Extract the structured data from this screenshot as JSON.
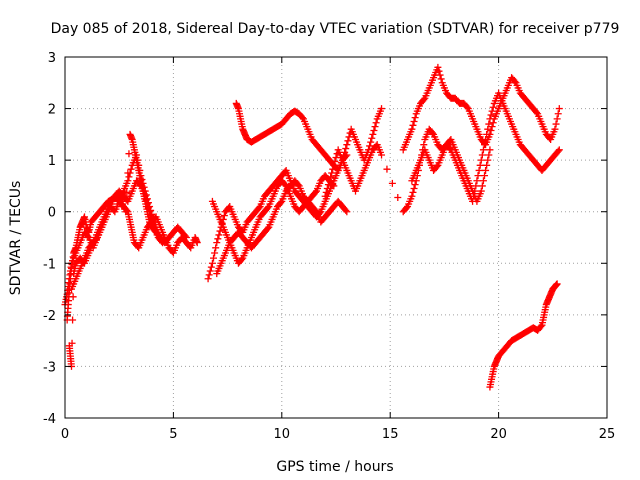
{
  "chart_data": {
    "type": "scatter",
    "title": "Day 085 of 2018, Sidereal Day-to-day VTEC variation (SDTVAR) for receiver p779",
    "xlabel": "GPS time / hours",
    "ylabel": "SDTVAR / TECUs",
    "xlim": [
      0,
      25
    ],
    "ylim": [
      -4,
      3
    ],
    "xticks": [
      0,
      5,
      10,
      15,
      20,
      25
    ],
    "yticks": [
      -4,
      -3,
      -2,
      -1,
      0,
      1,
      2,
      3
    ],
    "grid": true,
    "marker": "+",
    "series": [
      {
        "name": "s1",
        "color": "#ff0000",
        "x": [
          0.1,
          0.15,
          0.2,
          0.3,
          0.4,
          0.5,
          0.6,
          0.7,
          0.8,
          0.9,
          1.0,
          1.1,
          1.2,
          1.4,
          1.6,
          1.8,
          2.0,
          2.2,
          2.4,
          2.6,
          2.8,
          3.0,
          3.1,
          3.2,
          3.3,
          3.4,
          3.5,
          3.6,
          3.7,
          3.8,
          3.9,
          4.0,
          4.2,
          4.4,
          4.6,
          4.8,
          5.0,
          5.2,
          5.4,
          5.6
        ],
        "y": [
          -2.1,
          -1.8,
          -1.5,
          -1.1,
          -0.8,
          -0.7,
          -0.5,
          -0.3,
          -0.2,
          -0.1,
          -0.3,
          -0.4,
          -0.2,
          -0.1,
          0.0,
          0.1,
          0.2,
          0.25,
          0.3,
          0.2,
          0.0,
          1.5,
          1.4,
          1.2,
          1.0,
          0.8,
          0.6,
          0.4,
          0.2,
          0.0,
          -0.2,
          -0.3,
          -0.4,
          -0.5,
          -0.6,
          -0.5,
          -0.4,
          -0.3,
          -0.4,
          -0.5
        ]
      },
      {
        "name": "s2",
        "color": "#ff0000",
        "x": [
          0.2,
          0.25,
          0.3,
          0.4,
          0.5,
          0.7,
          0.9,
          1.1,
          1.3,
          1.5,
          1.7,
          1.9,
          2.1,
          2.3,
          2.5,
          2.7,
          2.9,
          3.0,
          3.1,
          3.2,
          3.4,
          3.6,
          3.8,
          4.0,
          4.2,
          4.4,
          4.6,
          4.8,
          5.0,
          5.2,
          5.4,
          5.6,
          5.8,
          6.0,
          6.1
        ],
        "y": [
          -2.6,
          -2.8,
          -3.0,
          -1.2,
          -1.0,
          -0.9,
          -1.0,
          -0.8,
          -0.6,
          -0.4,
          -0.2,
          0.0,
          0.2,
          0.3,
          0.2,
          0.1,
          0.0,
          -0.2,
          -0.4,
          -0.6,
          -0.7,
          -0.5,
          -0.3,
          -0.2,
          -0.1,
          -0.3,
          -0.5,
          -0.7,
          -0.8,
          -0.6,
          -0.5,
          -0.6,
          -0.7,
          -0.5,
          -0.6
        ]
      },
      {
        "name": "s3",
        "color": "#ff0000",
        "x": [
          0.3,
          0.5,
          0.7,
          0.9,
          1.1,
          1.3,
          1.5,
          1.7,
          1.9,
          2.1,
          2.3,
          2.5,
          2.7,
          2.9,
          3.1,
          3.3,
          3.5,
          3.7,
          3.9,
          4.1,
          4.3,
          4.5
        ],
        "y": [
          -1.5,
          -1.3,
          -1.1,
          -0.9,
          -0.7,
          -0.6,
          -0.5,
          -0.3,
          -0.1,
          0.1,
          0.3,
          0.4,
          0.3,
          0.2,
          0.4,
          0.6,
          0.5,
          0.3,
          0.0,
          -0.3,
          -0.5,
          -0.6
        ]
      },
      {
        "name": "s4",
        "color": "#ff0000",
        "x": [
          6.6,
          6.8,
          7.0,
          7.2,
          7.4,
          7.6,
          7.8,
          8.0,
          8.2,
          8.4,
          8.6,
          8.8,
          9.0,
          9.2,
          9.4,
          9.6,
          9.8,
          10.0,
          10.2,
          10.4,
          10.6,
          10.8,
          11.0,
          11.2,
          11.4,
          11.6,
          11.8,
          12.0,
          12.2,
          12.4,
          12.6,
          12.8,
          13.0
        ],
        "y": [
          -1.3,
          -1.0,
          -0.6,
          -0.3,
          0.0,
          0.1,
          -0.1,
          -0.3,
          -0.4,
          -0.2,
          -0.1,
          0.0,
          0.1,
          0.3,
          0.4,
          0.5,
          0.6,
          0.7,
          0.8,
          0.6,
          0.4,
          0.3,
          0.2,
          0.1,
          0.0,
          -0.1,
          0.0,
          0.2,
          0.4,
          0.6,
          0.8,
          1.0,
          1.1
        ]
      },
      {
        "name": "s5",
        "color": "#ff0000",
        "x": [
          6.8,
          7.0,
          7.2,
          7.4,
          7.6,
          7.8,
          8.0,
          8.2,
          8.4,
          8.6,
          8.8,
          9.0,
          9.2,
          9.4,
          9.6,
          9.8,
          10.0,
          10.2,
          10.4,
          10.6,
          10.8,
          11.0,
          11.2,
          11.4,
          11.6,
          11.8,
          12.0,
          12.2,
          12.4
        ],
        "y": [
          0.2,
          0.0,
          -0.2,
          -0.4,
          -0.6,
          -0.8,
          -1.0,
          -0.9,
          -0.7,
          -0.5,
          -0.3,
          -0.1,
          0.0,
          0.1,
          0.3,
          0.5,
          0.6,
          0.5,
          0.3,
          0.1,
          0.0,
          0.1,
          0.2,
          0.3,
          0.4,
          0.6,
          0.7,
          0.6,
          0.5
        ]
      },
      {
        "name": "s6",
        "color": "#ff0000",
        "x": [
          7.0,
          7.2,
          7.4,
          7.6,
          7.8,
          8.0,
          8.2,
          8.4,
          8.6,
          8.8,
          9.0,
          9.2,
          9.4,
          9.6,
          9.8,
          10.0,
          10.2,
          10.4,
          10.6,
          10.8,
          11.0,
          11.2,
          11.4,
          11.6,
          11.8,
          12.0,
          12.2,
          12.4,
          12.6,
          12.8,
          13.0
        ],
        "y": [
          -1.2,
          -1.0,
          -0.8,
          -0.6,
          -0.5,
          -0.4,
          -0.5,
          -0.6,
          -0.7,
          -0.6,
          -0.5,
          -0.4,
          -0.3,
          -0.1,
          0.1,
          0.2,
          0.4,
          0.5,
          0.6,
          0.5,
          0.3,
          0.2,
          0.1,
          0.0,
          -0.2,
          -0.1,
          0.0,
          0.1,
          0.2,
          0.1,
          0.0
        ]
      },
      {
        "name": "s7",
        "color": "#ff0000",
        "x": [
          7.9,
          8.0,
          8.1,
          8.2,
          8.3,
          8.4,
          8.6,
          8.8,
          9.0,
          9.2,
          9.4,
          9.6,
          9.8,
          10.0,
          10.2,
          10.4,
          10.6,
          10.8,
          11.0,
          11.2,
          11.4,
          11.6,
          11.8,
          12.0,
          12.2,
          12.4,
          12.6,
          12.8,
          13.0,
          13.2,
          13.4,
          13.6,
          13.8,
          14.0,
          14.2,
          14.4,
          14.6
        ],
        "y": [
          2.1,
          2.0,
          1.8,
          1.6,
          1.5,
          1.4,
          1.35,
          1.4,
          1.45,
          1.5,
          1.55,
          1.6,
          1.65,
          1.7,
          1.8,
          1.9,
          1.95,
          1.9,
          1.8,
          1.6,
          1.4,
          1.3,
          1.2,
          1.1,
          1.0,
          0.9,
          0.8,
          1.0,
          1.3,
          1.6,
          1.4,
          1.2,
          1.0,
          1.2,
          1.5,
          1.8,
          2.0
        ]
      },
      {
        "name": "s8",
        "color": "#ff0000",
        "x": [
          12.0,
          12.2,
          12.4,
          12.6,
          12.8,
          13.0,
          13.2,
          13.4,
          13.6,
          13.8,
          14.0,
          14.2,
          14.4,
          14.6,
          15.6,
          15.8,
          16.0,
          16.2,
          16.4,
          16.6,
          16.8,
          17.0,
          17.2,
          17.4,
          17.6,
          17.8,
          18.0,
          18.2,
          18.4,
          18.6,
          18.8,
          19.0,
          19.2,
          19.4,
          19.6
        ],
        "y": [
          0.3,
          0.6,
          0.9,
          1.2,
          1.0,
          0.8,
          0.6,
          0.4,
          0.6,
          0.8,
          1.0,
          1.2,
          1.3,
          1.1,
          0.0,
          0.1,
          0.3,
          0.6,
          1.0,
          1.4,
          1.6,
          1.5,
          1.3,
          1.2,
          1.3,
          1.4,
          1.2,
          1.0,
          0.8,
          0.6,
          0.4,
          0.2,
          0.4,
          0.8,
          1.2
        ]
      },
      {
        "name": "s9",
        "color": "#ff0000",
        "x": [
          15.6,
          15.8,
          16.0,
          16.2,
          16.4,
          16.6,
          16.8,
          17.0,
          17.2,
          17.4,
          17.6,
          17.8,
          18.0,
          18.2,
          18.4,
          18.6,
          18.8,
          19.0,
          19.2,
          19.4,
          19.6,
          19.8,
          20.0,
          20.2,
          20.4,
          20.6,
          20.8,
          21.0,
          21.2,
          21.4,
          21.6,
          21.8,
          22.0,
          22.2,
          22.4,
          22.6,
          22.8
        ],
        "y": [
          1.2,
          1.4,
          1.6,
          1.9,
          2.1,
          2.2,
          2.4,
          2.6,
          2.8,
          2.5,
          2.3,
          2.2,
          2.2,
          2.1,
          2.1,
          2.0,
          1.8,
          1.6,
          1.4,
          1.3,
          1.5,
          1.8,
          2.0,
          2.2,
          2.4,
          2.6,
          2.5,
          2.3,
          2.2,
          2.1,
          2.0,
          1.9,
          1.7,
          1.5,
          1.4,
          1.6,
          2.0
        ]
      },
      {
        "name": "s10",
        "color": "#ff0000",
        "x": [
          16.0,
          16.2,
          16.4,
          16.6,
          16.8,
          17.0,
          17.2,
          17.4,
          17.6,
          17.8,
          18.0,
          18.2,
          18.4,
          18.6,
          18.8,
          19.0,
          19.2,
          19.4,
          19.6,
          19.8,
          20.0,
          20.2,
          20.4,
          20.6,
          20.8,
          21.0,
          21.2,
          21.4,
          21.6,
          21.8,
          22.0,
          22.2,
          22.4,
          22.6,
          22.8
        ],
        "y": [
          0.6,
          0.8,
          1.0,
          1.2,
          1.0,
          0.8,
          0.9,
          1.1,
          1.3,
          1.2,
          1.0,
          0.8,
          0.6,
          0.4,
          0.2,
          0.6,
          1.0,
          1.4,
          1.8,
          2.1,
          2.3,
          2.1,
          1.9,
          1.7,
          1.5,
          1.3,
          1.2,
          1.1,
          1.0,
          0.9,
          0.8,
          0.9,
          1.0,
          1.1,
          1.2
        ]
      },
      {
        "name": "s11",
        "color": "#ff0000",
        "x": [
          19.6,
          19.7,
          19.8,
          19.9,
          20.0,
          20.2,
          20.4,
          20.6,
          20.8,
          21.0,
          21.2,
          21.4,
          21.6,
          21.8,
          22.0,
          22.1,
          22.2,
          22.3,
          22.4,
          22.5,
          22.6,
          22.7
        ],
        "y": [
          -3.4,
          -3.2,
          -3.0,
          -2.9,
          -2.8,
          -2.7,
          -2.6,
          -2.5,
          -2.45,
          -2.4,
          -2.35,
          -2.3,
          -2.25,
          -2.3,
          -2.2,
          -2.0,
          -1.8,
          -1.7,
          -1.6,
          -1.5,
          -1.45,
          -1.4
        ]
      },
      {
        "name": "s12",
        "color": "#ff0000",
        "x": [
          0.0,
          0.1,
          0.2,
          0.3,
          0.5,
          0.7,
          0.9,
          1.1,
          1.3,
          1.5,
          1.7,
          1.9,
          2.1,
          2.3,
          2.5,
          2.7,
          2.9,
          3.1,
          3.3,
          3.5,
          3.7,
          3.9,
          4.1,
          4.3,
          4.5
        ],
        "y": [
          -1.8,
          -1.6,
          -1.3,
          -1.0,
          -0.8,
          -0.6,
          -0.4,
          -0.5,
          -0.7,
          -0.5,
          -0.3,
          -0.1,
          0.1,
          0.0,
          0.2,
          0.4,
          0.6,
          0.9,
          1.1,
          0.7,
          0.4,
          0.1,
          -0.2,
          -0.4,
          -0.6
        ]
      }
    ]
  }
}
